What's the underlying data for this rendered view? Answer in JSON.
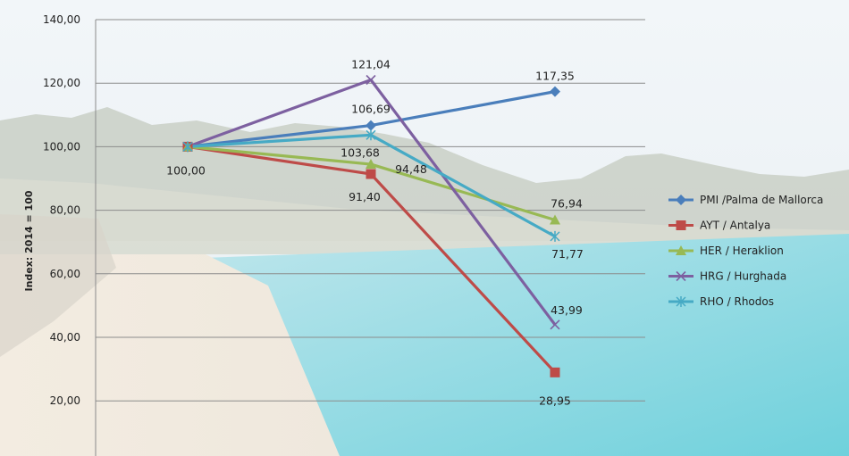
{
  "chart_data": {
    "type": "line",
    "ylabel": "Index: 2014 = 100",
    "ylim": [
      0,
      140
    ],
    "yticks": [
      "20,00",
      "40,00",
      "60,00",
      "80,00",
      "100,00",
      "120,00",
      "140,00"
    ],
    "grid": true,
    "legend_position": "right",
    "series": [
      {
        "name": "PMI /Palma de Mallorca",
        "color": "#4a7ebb",
        "marker": "diamond",
        "values": [
          100.0,
          106.69,
          117.35
        ],
        "labels": [
          "",
          "106,69",
          "117,35"
        ]
      },
      {
        "name": "AYT / Antalya",
        "color": "#be4b48",
        "marker": "square",
        "values": [
          100.0,
          91.4,
          28.95
        ],
        "labels": [
          "100,00",
          "91,40",
          "28,95"
        ]
      },
      {
        "name": "HER / Heraklion",
        "color": "#98b954",
        "marker": "triangle",
        "values": [
          100.0,
          94.48,
          76.94
        ],
        "labels": [
          "",
          "94,48",
          "76,94"
        ]
      },
      {
        "name": "HRG / Hurghada",
        "color": "#7d60a0",
        "marker": "x",
        "values": [
          100.0,
          121.04,
          43.99
        ],
        "labels": [
          "",
          "121,04",
          "43,99"
        ]
      },
      {
        "name": "RHO / Rhodos",
        "color": "#46aac5",
        "marker": "star",
        "values": [
          100.0,
          103.68,
          71.77
        ],
        "labels": [
          "",
          "103,68",
          "71,77"
        ]
      }
    ]
  }
}
